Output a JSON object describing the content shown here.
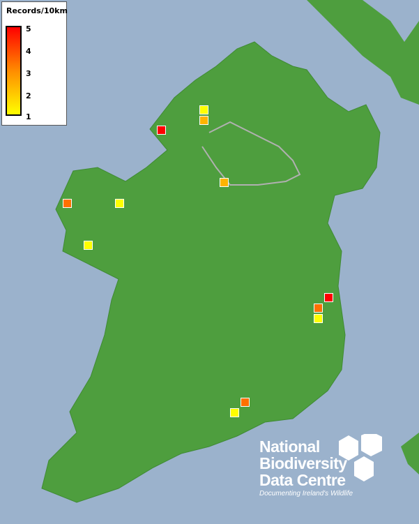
{
  "legend": {
    "title": "Records/10km",
    "ticks": [
      "5",
      "4",
      "3",
      "2",
      "1"
    ],
    "colors": {
      "max": "#ff0000",
      "mid": "#ff8c00",
      "min": "#ffff00"
    }
  },
  "records": [
    1,
    2,
    5,
    2,
    3,
    1,
    1,
    5,
    3,
    1,
    3,
    1
  ],
  "colors": {
    "sea": "#9bb2cc",
    "land": "#4e9e3e",
    "border": "#b0b0b0"
  },
  "logo": {
    "lines": [
      "National",
      "Biodiversity",
      "Data Centre"
    ],
    "tagline": "Documenting Ireland's Wildlife"
  }
}
